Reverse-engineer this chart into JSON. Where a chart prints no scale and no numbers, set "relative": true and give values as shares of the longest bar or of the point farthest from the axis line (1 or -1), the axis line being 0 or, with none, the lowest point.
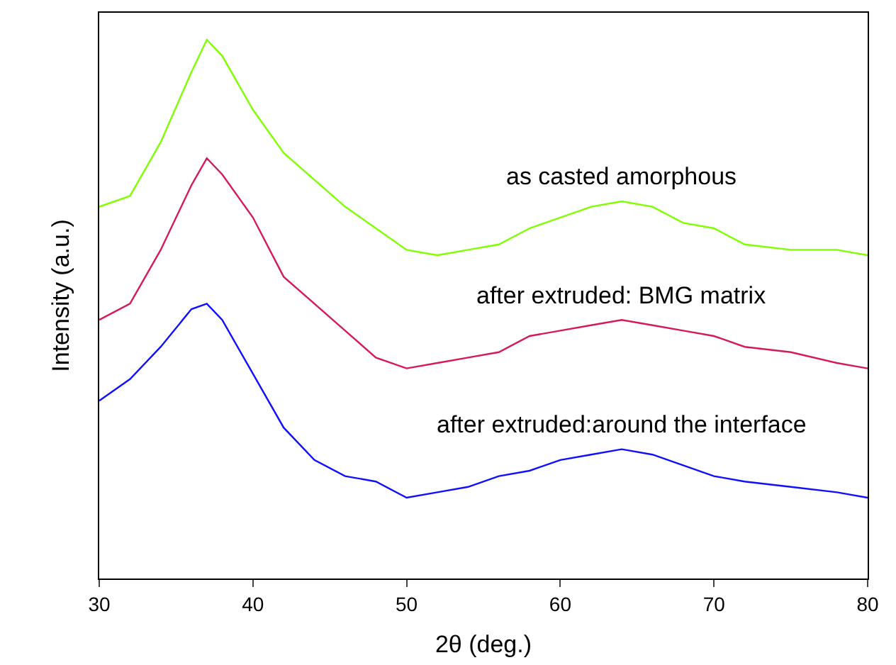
{
  "chart_data": {
    "type": "line",
    "relative": true,
    "xlabel": "2θ (deg.)",
    "ylabel": "Intensity (a.u.)",
    "xlim": [
      30,
      80
    ],
    "xticks": [
      30,
      40,
      50,
      60,
      70,
      80
    ],
    "legend": false,
    "marker": "none",
    "line_style": "solid",
    "series": [
      {
        "name": "as casted amorphous",
        "color": "#80ff00",
        "x": [
          30,
          32,
          34,
          36,
          37,
          38,
          39,
          40,
          42,
          44,
          46,
          48,
          50,
          52,
          54,
          56,
          58,
          60,
          62,
          64,
          66,
          68,
          70,
          72,
          75,
          78,
          80
        ],
        "values": [
          0.69,
          0.71,
          0.81,
          0.94,
          1.0,
          0.97,
          0.92,
          0.87,
          0.79,
          0.74,
          0.69,
          0.65,
          0.61,
          0.6,
          0.61,
          0.62,
          0.65,
          0.67,
          0.69,
          0.7,
          0.69,
          0.66,
          0.65,
          0.62,
          0.61,
          0.61,
          0.6
        ]
      },
      {
        "name": "after extruded: BMG matrix",
        "color": "#d6195e",
        "x": [
          30,
          32,
          34,
          36,
          37,
          38,
          40,
          42,
          44,
          46,
          48,
          50,
          52,
          54,
          56,
          58,
          60,
          62,
          64,
          66,
          68,
          70,
          72,
          75,
          78,
          80
        ],
        "values": [
          0.48,
          0.51,
          0.61,
          0.73,
          0.78,
          0.75,
          0.67,
          0.56,
          0.51,
          0.46,
          0.41,
          0.39,
          0.4,
          0.41,
          0.42,
          0.45,
          0.46,
          0.47,
          0.48,
          0.47,
          0.46,
          0.45,
          0.43,
          0.42,
          0.4,
          0.39
        ]
      },
      {
        "name": "after extruded:around the interface",
        "color": "#1010ff",
        "x": [
          30,
          32,
          34,
          36,
          37,
          38,
          40,
          42,
          44,
          46,
          48,
          50,
          52,
          54,
          56,
          58,
          60,
          62,
          64,
          66,
          68,
          70,
          72,
          75,
          78,
          80
        ],
        "values": [
          0.33,
          0.37,
          0.43,
          0.5,
          0.51,
          0.48,
          0.38,
          0.28,
          0.22,
          0.19,
          0.18,
          0.15,
          0.16,
          0.17,
          0.19,
          0.2,
          0.22,
          0.23,
          0.24,
          0.23,
          0.21,
          0.19,
          0.18,
          0.17,
          0.16,
          0.15
        ]
      }
    ]
  }
}
